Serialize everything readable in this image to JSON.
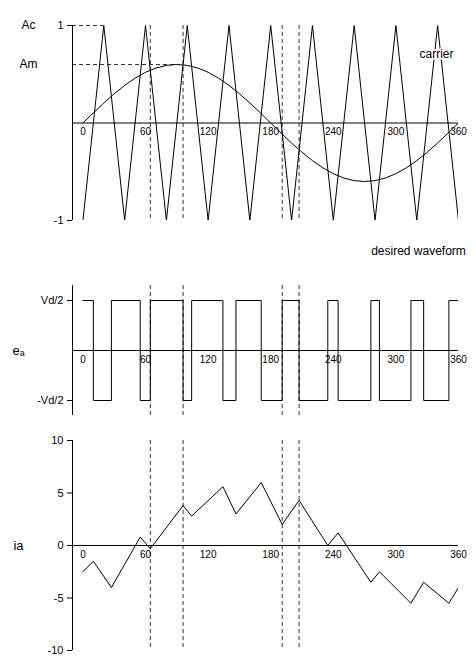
{
  "chart_data": [
    {
      "type": "line",
      "xlim": [
        -10,
        360
      ],
      "xticks": [
        0,
        60,
        120,
        180,
        240,
        300,
        360
      ],
      "ylim": [
        -1,
        1
      ],
      "yticks": [
        1,
        -1
      ],
      "annotations": [
        {
          "text": "Ac",
          "y": 1,
          "series": "carrier"
        },
        {
          "text": "Am",
          "y": 0.6,
          "series": "desired waveform"
        }
      ],
      "dashed_x": [
        64.6,
        96,
        191,
        207.2
      ],
      "series": [
        {
          "name": "carrier",
          "color": "#000000",
          "x": [
            0,
            20,
            40,
            60,
            80,
            100,
            120,
            140,
            160,
            180,
            200,
            220,
            240,
            260,
            280,
            300,
            320,
            340,
            360
          ],
          "values": [
            -1,
            1,
            -1,
            1,
            -1,
            1,
            -1,
            1,
            -1,
            1,
            -1,
            1,
            -1,
            1,
            -1,
            1,
            -1,
            1,
            -1
          ]
        },
        {
          "name": "desired waveform",
          "color": "#000000",
          "x": [
            0,
            10,
            20,
            30,
            40,
            50,
            60,
            70,
            80,
            90,
            100,
            110,
            120,
            130,
            140,
            150,
            160,
            170,
            180,
            190,
            200,
            210,
            220,
            230,
            240,
            250,
            260,
            270,
            280,
            290,
            300,
            310,
            320,
            330,
            340,
            350,
            360
          ],
          "values": [
            0,
            0.104,
            0.205,
            0.3,
            0.386,
            0.46,
            0.52,
            0.564,
            0.591,
            0.6,
            0.591,
            0.564,
            0.52,
            0.46,
            0.386,
            0.3,
            0.205,
            0.104,
            0,
            -0.104,
            -0.205,
            -0.3,
            -0.386,
            -0.46,
            -0.52,
            -0.564,
            -0.591,
            -0.6,
            -0.591,
            -0.564,
            -0.52,
            -0.46,
            -0.386,
            -0.3,
            -0.205,
            -0.104,
            0
          ]
        }
      ]
    },
    {
      "type": "step",
      "xlim": [
        -10,
        360
      ],
      "xticks": [
        0,
        60,
        120,
        180,
        240,
        300,
        360
      ],
      "ylim": [
        -1.3,
        1.3
      ],
      "yticks": [
        {
          "value": 1,
          "label": "Vd/2"
        },
        {
          "value": -1,
          "label": "-Vd/2"
        }
      ],
      "ylabel": "eₐ",
      "dashed_x": [
        64.6,
        96,
        191,
        207.2
      ],
      "series": [
        {
          "color": "#000000",
          "x": [
            0,
            10,
            27.3,
            54.9,
            64.6,
            96,
            104.2,
            134.2,
            146.7,
            170.9,
            191,
            207.2,
            234.7,
            244.6,
            276,
            284.2,
            314.4,
            326.6,
            350.8,
            360
          ],
          "values": [
            1,
            -1,
            1,
            -1,
            1,
            -1,
            1,
            -1,
            1,
            -1,
            1,
            -1,
            1,
            -1,
            1,
            -1,
            1,
            -1,
            1,
            1
          ]
        }
      ]
    },
    {
      "type": "line",
      "xlim": [
        -10,
        360
      ],
      "xticks": [
        0,
        60,
        120,
        180,
        240,
        300,
        360
      ],
      "ylim": [
        -10,
        10
      ],
      "yticks": [
        10,
        5,
        0,
        -5,
        -10
      ],
      "ylabel": "ia",
      "dashed_x": [
        64.6,
        96,
        191,
        207.2
      ],
      "series": [
        {
          "color": "#000000",
          "x": [
            0,
            10,
            27.3,
            54.9,
            64.6,
            96,
            104.2,
            134.2,
            146.7,
            170.9,
            191,
            207.2,
            234.7,
            244.6,
            276,
            284.2,
            314.4,
            326.6,
            350.8,
            360
          ],
          "values": [
            -2.5,
            -1.5,
            -4,
            0.8,
            -0.3,
            3.8,
            2.8,
            5.6,
            3,
            6,
            2,
            4.3,
            0,
            1.2,
            -3.5,
            -2.5,
            -5.5,
            -3.5,
            -5.5,
            -4
          ]
        }
      ]
    }
  ]
}
